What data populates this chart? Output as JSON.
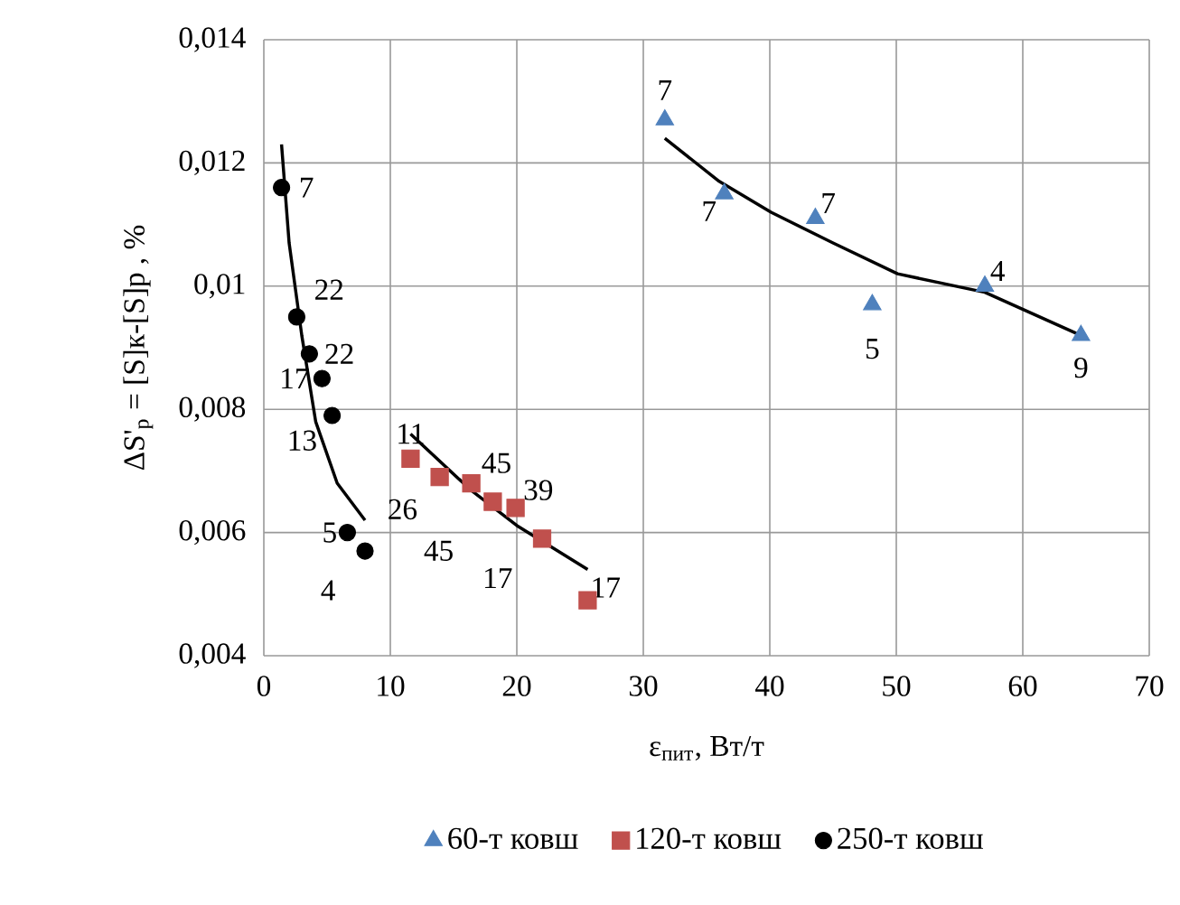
{
  "chart_data": {
    "type": "scatter",
    "xlabel": "ε$_{пит}$, Вт/т",
    "ylabel": "ΔS'$_{p}$ = [S]к-[S]p , %",
    "xlim": [
      0,
      70
    ],
    "xticks": [
      0,
      10,
      20,
      30,
      40,
      50,
      60,
      70
    ],
    "ylim": [
      0.004,
      0.014
    ],
    "yticks": [
      {
        "value": 0.004,
        "label": "0,004"
      },
      {
        "value": 0.006,
        "label": "0,006"
      },
      {
        "value": 0.008,
        "label": "0,008"
      },
      {
        "value": 0.01,
        "label": "0,01"
      },
      {
        "value": 0.012,
        "label": "0,012"
      },
      {
        "value": 0.014,
        "label": "0,014"
      }
    ],
    "grid": true,
    "legend": "bottom",
    "series": [
      {
        "name": "60-т ковш",
        "color": "#4f81bd",
        "marker": "triangle",
        "x": [
          31.7,
          36.4,
          43.6,
          48.1,
          57.0,
          64.6
        ],
        "values": [
          0.0127,
          0.0115,
          0.0111,
          0.0097,
          0.01,
          0.0092
        ]
      },
      {
        "name": "120-т ковш",
        "color": "#c0504d",
        "marker": "square",
        "x": [
          11.6,
          13.9,
          16.4,
          18.1,
          19.9,
          22.0,
          25.6
        ],
        "values": [
          0.0072,
          0.0069,
          0.0068,
          0.0065,
          0.0064,
          0.0059,
          0.0049
        ]
      },
      {
        "name": "250-т ковш",
        "color": "#000000",
        "marker": "circle",
        "x": [
          1.4,
          2.6,
          3.6,
          4.6,
          5.4,
          6.6,
          8.0
        ],
        "values": [
          0.0116,
          0.0095,
          0.0089,
          0.0085,
          0.0079,
          0.006,
          0.0057
        ]
      },
      {
        "type": "line",
        "color": "#000000",
        "marker": "none",
        "x": [
          31.7,
          36,
          40.1,
          45,
          50.1,
          57,
          64.6
        ],
        "values": [
          0.0124,
          0.0117,
          0.0112,
          0.0107,
          0.0102,
          0.0099,
          0.0092
        ]
      },
      {
        "type": "line",
        "color": "#000000",
        "marker": "none",
        "x": [
          11.6,
          16.3,
          20.1,
          25.6
        ],
        "values": [
          0.0076,
          0.0067,
          0.0061,
          0.0054
        ]
      },
      {
        "type": "line",
        "color": "#000000",
        "marker": "none",
        "x": [
          1.4,
          2.0,
          3.0,
          4.1,
          5.8,
          8.0
        ],
        "values": [
          0.0123,
          0.0107,
          0.0092,
          0.0078,
          0.0068,
          0.0062
        ]
      }
    ],
    "annotations": [
      {
        "text": "7",
        "x": 31.7,
        "y": 0.0127
      },
      {
        "text": "7",
        "x": 36.4,
        "y": 0.0115
      },
      {
        "text": "7",
        "x": 43.6,
        "y": 0.0111
      },
      {
        "text": "5",
        "x": 48.1,
        "y": 0.0097
      },
      {
        "text": "4",
        "x": 57.0,
        "y": 0.01
      },
      {
        "text": "9",
        "x": 64.6,
        "y": 0.0092
      },
      {
        "text": "11",
        "x": 11.6,
        "y": 0.0072
      },
      {
        "text": "26",
        "x": 13.9,
        "y": 0.0069
      },
      {
        "text": "45",
        "x": 16.4,
        "y": 0.0068
      },
      {
        "text": "45",
        "x": 18.1,
        "y": 0.0065
      },
      {
        "text": "39",
        "x": 19.9,
        "y": 0.0064
      },
      {
        "text": "17",
        "x": 22.0,
        "y": 0.0059
      },
      {
        "text": "17",
        "x": 25.6,
        "y": 0.0049
      },
      {
        "text": "7",
        "x": 1.4,
        "y": 0.0116
      },
      {
        "text": "22",
        "x": 2.6,
        "y": 0.0095
      },
      {
        "text": "22",
        "x": 3.6,
        "y": 0.0089
      },
      {
        "text": "17",
        "x": 4.6,
        "y": 0.0085
      },
      {
        "text": "13",
        "x": 5.4,
        "y": 0.0079
      },
      {
        "text": "5",
        "x": 6.6,
        "y": 0.006
      },
      {
        "text": "4",
        "x": 8.0,
        "y": 0.0057
      }
    ]
  }
}
